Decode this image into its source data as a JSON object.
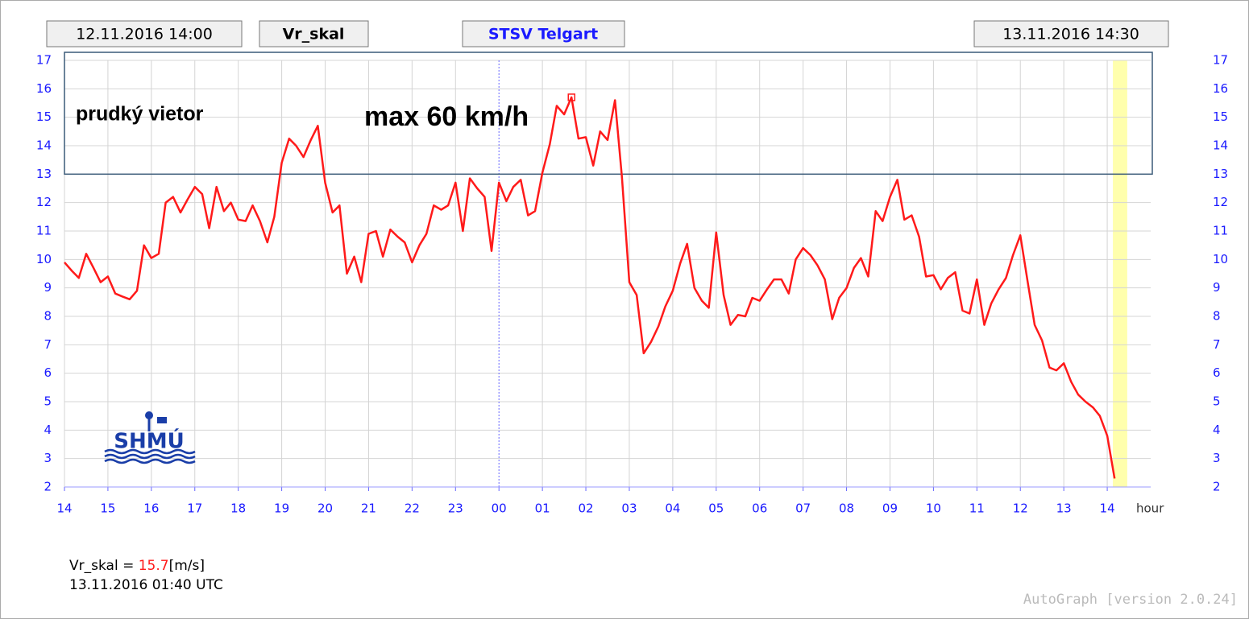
{
  "header": {
    "start": "12.11.2016 14:00",
    "variable": "Vr_skal",
    "station": "STSV Telgart",
    "end": "13.11.2016 14:30"
  },
  "chart_data": {
    "type": "line",
    "color": "#ff1a1a",
    "annotations": [
      "prudký vietor",
      "max 60 km/h"
    ],
    "xlabel": "hour",
    "x": [
      0,
      0.17,
      0.33,
      0.5,
      0.67,
      0.83,
      1,
      1.17,
      1.33,
      1.5,
      1.67,
      1.83,
      2,
      2.17,
      2.33,
      2.5,
      2.67,
      2.83,
      3,
      3.17,
      3.33,
      3.5,
      3.67,
      3.83,
      4,
      4.17,
      4.33,
      4.5,
      4.67,
      4.83,
      5,
      5.17,
      5.33,
      5.5,
      5.67,
      5.83,
      6,
      6.17,
      6.33,
      6.5,
      6.67,
      6.83,
      7,
      7.17,
      7.33,
      7.5,
      7.67,
      7.83,
      8,
      8.17,
      8.33,
      8.5,
      8.67,
      8.83,
      9,
      9.17,
      9.33,
      9.5,
      9.67,
      9.83,
      10,
      10.17,
      10.33,
      10.5,
      10.67,
      10.83,
      11,
      11.17,
      11.33,
      11.5,
      11.67,
      11.83,
      12,
      12.17,
      12.33,
      12.5,
      12.67,
      12.83,
      13,
      13.17,
      13.33,
      13.5,
      13.67,
      13.83,
      14,
      14.17,
      14.33,
      14.5,
      14.67,
      14.83,
      15,
      15.17,
      15.33,
      15.5,
      15.67,
      15.83,
      16,
      16.17,
      16.33,
      16.5,
      16.67,
      16.83,
      17,
      17.17,
      17.33,
      17.5,
      17.67,
      17.83,
      18,
      18.17,
      18.33,
      18.5,
      18.67,
      18.83,
      19,
      19.17,
      19.33,
      19.5,
      19.67,
      19.83,
      20,
      20.17,
      20.33,
      20.5,
      20.67,
      20.83,
      21,
      21.17,
      21.33,
      21.5,
      21.67,
      21.83,
      22,
      22.17,
      22.33,
      22.5,
      22.67,
      22.83,
      23,
      23.17,
      23.33,
      23.5,
      23.67,
      23.83,
      24,
      24.17
    ],
    "values": [
      9.9,
      9.6,
      9.35,
      10.2,
      9.7,
      9.2,
      9.4,
      8.8,
      8.7,
      8.6,
      8.9,
      10.5,
      10.05,
      10.2,
      12.0,
      12.2,
      11.65,
      12.1,
      12.55,
      12.3,
      11.1,
      12.55,
      11.7,
      12.0,
      11.4,
      11.35,
      11.9,
      11.35,
      10.6,
      11.5,
      13.4,
      14.25,
      14.0,
      13.6,
      14.2,
      14.7,
      12.7,
      11.65,
      11.9,
      9.5,
      10.1,
      9.2,
      10.9,
      11.0,
      10.1,
      11.05,
      10.8,
      10.6,
      9.9,
      10.5,
      10.9,
      11.9,
      11.75,
      11.9,
      12.7,
      11.0,
      12.85,
      12.5,
      12.2,
      10.3,
      12.7,
      12.05,
      12.55,
      12.8,
      11.55,
      11.7,
      13.05,
      14.05,
      15.4,
      15.1,
      15.7,
      14.25,
      14.3,
      13.3,
      14.5,
      14.2,
      15.6,
      12.9,
      9.2,
      8.75,
      6.7,
      7.1,
      7.65,
      8.35,
      8.9,
      9.85,
      10.55,
      9.0,
      8.55,
      8.3,
      10.95,
      8.75,
      7.7,
      8.05,
      8.0,
      8.65,
      8.55,
      8.95,
      9.3,
      9.3,
      8.8,
      10.0,
      10.4,
      10.15,
      9.8,
      9.3,
      7.9,
      8.65,
      9.0,
      9.7,
      10.05,
      9.4,
      11.7,
      11.35,
      12.2,
      12.8,
      11.4,
      11.55,
      10.8,
      9.4,
      9.45,
      8.95,
      9.35,
      9.55,
      8.2,
      8.1,
      9.3,
      7.7,
      8.45,
      8.95,
      9.35,
      10.15,
      10.85,
      9.2,
      7.7,
      7.15,
      6.2,
      6.1,
      6.35,
      5.7,
      5.25,
      5.0,
      4.8,
      4.5,
      3.8,
      2.3
    ],
    "marked_point": 70,
    "highlight_x": [
      24.13,
      24.46
    ],
    "xlim": [
      0,
      25
    ],
    "xticks": [
      {
        "value": 0,
        "label": "14"
      },
      {
        "value": 1,
        "label": "15"
      },
      {
        "value": 2,
        "label": "16"
      },
      {
        "value": 3,
        "label": "17"
      },
      {
        "value": 4,
        "label": "18"
      },
      {
        "value": 5,
        "label": "19"
      },
      {
        "value": 6,
        "label": "20"
      },
      {
        "value": 7,
        "label": "21"
      },
      {
        "value": 8,
        "label": "22"
      },
      {
        "value": 9,
        "label": "23"
      },
      {
        "value": 10,
        "label": "00"
      },
      {
        "value": 11,
        "label": "01"
      },
      {
        "value": 12,
        "label": "02"
      },
      {
        "value": 13,
        "label": "03"
      },
      {
        "value": 14,
        "label": "04"
      },
      {
        "value": 15,
        "label": "05"
      },
      {
        "value": 16,
        "label": "06"
      },
      {
        "value": 17,
        "label": "07"
      },
      {
        "value": 18,
        "label": "08"
      },
      {
        "value": 19,
        "label": "09"
      },
      {
        "value": 20,
        "label": "10"
      },
      {
        "value": 21,
        "label": "11"
      },
      {
        "value": 22,
        "label": "12"
      },
      {
        "value": 23,
        "label": "13"
      },
      {
        "value": 24,
        "label": "14"
      }
    ],
    "ylim": [
      2,
      17
    ],
    "yticks": [
      2,
      3,
      4,
      5,
      6,
      7,
      8,
      9,
      10,
      11,
      12,
      13,
      14,
      15,
      16,
      17
    ],
    "grid": true
  },
  "logo": "SHMÚ",
  "readout": {
    "prefix": "Vr_skal = ",
    "value": 15.7,
    "unit": "[m/s]",
    "time": "13.11.2016 01:40 UTC"
  },
  "footer": "AutoGraph [version 2.0.24]"
}
